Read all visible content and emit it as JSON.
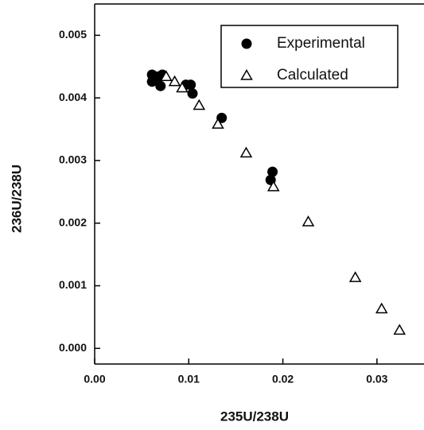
{
  "chart_data": {
    "type": "scatter",
    "x_label": "235U/238U",
    "y_label": "236U/238U",
    "xlim": [
      0,
      0.035
    ],
    "ylim": [
      -0.00025,
      0.0055
    ],
    "xticks": [
      {
        "value": 0,
        "label": "0.00"
      },
      0.01,
      0.02,
      0.03
    ],
    "yticks": [
      {
        "value": 0,
        "label": "0.000"
      },
      0.001,
      0.002,
      0.003,
      0.004,
      0.005
    ],
    "legend": "upper right",
    "series": [
      {
        "name": "Experimental",
        "color": "#000000",
        "marker": "circle",
        "x": [
          0.0061,
          0.0061,
          0.0067,
          0.0072,
          0.007,
          0.0097,
          0.0102,
          0.0104,
          0.0135,
          0.0189,
          0.0187
        ],
        "values": [
          0.00437,
          0.00426,
          0.00434,
          0.00437,
          0.00419,
          0.00421,
          0.00421,
          0.00407,
          0.00368,
          0.00282,
          0.00269
        ]
      },
      {
        "name": "Calculated",
        "color": "#000000",
        "marker": "triangle",
        "x": [
          0.0076,
          0.0085,
          0.0093,
          0.0111,
          0.0131,
          0.0161,
          0.019,
          0.0227,
          0.0277,
          0.0305,
          0.0324
        ],
        "values": [
          0.00434,
          0.00426,
          0.00416,
          0.00388,
          0.00358,
          0.00312,
          0.00258,
          0.00202,
          0.00113,
          0.00063,
          0.00029
        ]
      }
    ]
  }
}
